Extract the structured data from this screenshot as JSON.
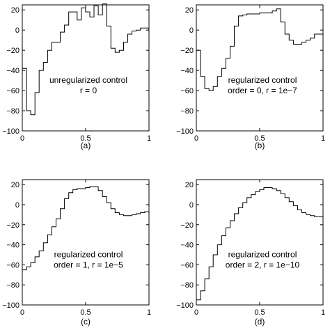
{
  "colors": {
    "line": "#000000",
    "axis": "#000000",
    "background": "#ffffff"
  },
  "chart_data": [
    {
      "type": "line",
      "caption": "(a)",
      "annotation": [
        "unregularized control",
        "r = 0"
      ],
      "xlim": [
        0,
        1
      ],
      "ylim": [
        -100,
        25
      ],
      "xticks": [
        "0",
        "0.5",
        "1"
      ],
      "yticks": [
        "20",
        "0",
        "−20",
        "−40",
        "−60",
        "−80",
        "−100"
      ],
      "series": [
        {
          "step": 0.0333,
          "values": [
            -38,
            -80,
            -84,
            -62,
            -40,
            -32,
            -20,
            -12,
            -12,
            -2,
            5,
            18,
            18,
            10,
            22,
            18,
            13,
            24,
            15,
            26,
            4,
            -18,
            -22,
            -20,
            -12,
            -4,
            -1,
            0,
            2,
            2,
            0
          ]
        }
      ]
    },
    {
      "type": "line",
      "caption": "(b)",
      "annotation": [
        "regularized control",
        "order = 0, r = 1e−7"
      ],
      "xlim": [
        0,
        1
      ],
      "ylim": [
        -100,
        25
      ],
      "xticks": [
        "0",
        "0.5",
        "1"
      ],
      "yticks": [
        "20",
        "0",
        "−20",
        "−40",
        "−60",
        "−80",
        "−100"
      ],
      "series": [
        {
          "step": 0.0333,
          "values": [
            -20,
            -46,
            -58,
            -60,
            -56,
            -46,
            -38,
            -28,
            -16,
            4,
            14,
            15,
            16,
            16,
            16,
            17,
            17,
            17,
            19,
            21,
            8,
            -4,
            -10,
            -14,
            -14,
            -12,
            -10,
            -8,
            -4,
            -4,
            -4
          ]
        }
      ]
    },
    {
      "type": "line",
      "caption": "(c)",
      "annotation": [
        "regularized control",
        "order = 1, r = 1e−5"
      ],
      "xlim": [
        0,
        1
      ],
      "ylim": [
        -100,
        25
      ],
      "xticks": [
        "0",
        "0.5",
        "1"
      ],
      "yticks": [
        "20",
        "0",
        "−20",
        "−40",
        "−60",
        "−80",
        "−100"
      ],
      "series": [
        {
          "step": 0.0333,
          "values": [
            -65,
            -62,
            -58,
            -52,
            -46,
            -38,
            -30,
            -22,
            -14,
            -4,
            6,
            12,
            15,
            16,
            16,
            17,
            18,
            18,
            14,
            8,
            2,
            -4,
            -8,
            -10,
            -11,
            -11,
            -10,
            -9,
            -8,
            -7,
            -7
          ]
        }
      ]
    },
    {
      "type": "line",
      "caption": "(d)",
      "annotation": [
        "regularized control",
        "order = 2, r = 1e−10"
      ],
      "xlim": [
        0,
        1
      ],
      "ylim": [
        -100,
        25
      ],
      "xticks": [
        "0",
        "0.5",
        "1"
      ],
      "yticks": [
        "20",
        "0",
        "−20",
        "−40",
        "−60",
        "−80",
        "−100"
      ],
      "series": [
        {
          "step": 0.0333,
          "values": [
            -95,
            -86,
            -74,
            -62,
            -50,
            -40,
            -31,
            -23,
            -16,
            -9,
            -3,
            2,
            7,
            10,
            13,
            15,
            17,
            17,
            16,
            14,
            11,
            7,
            3,
            -1,
            -5,
            -8,
            -10,
            -11,
            -12,
            -12,
            -12
          ]
        }
      ]
    }
  ]
}
